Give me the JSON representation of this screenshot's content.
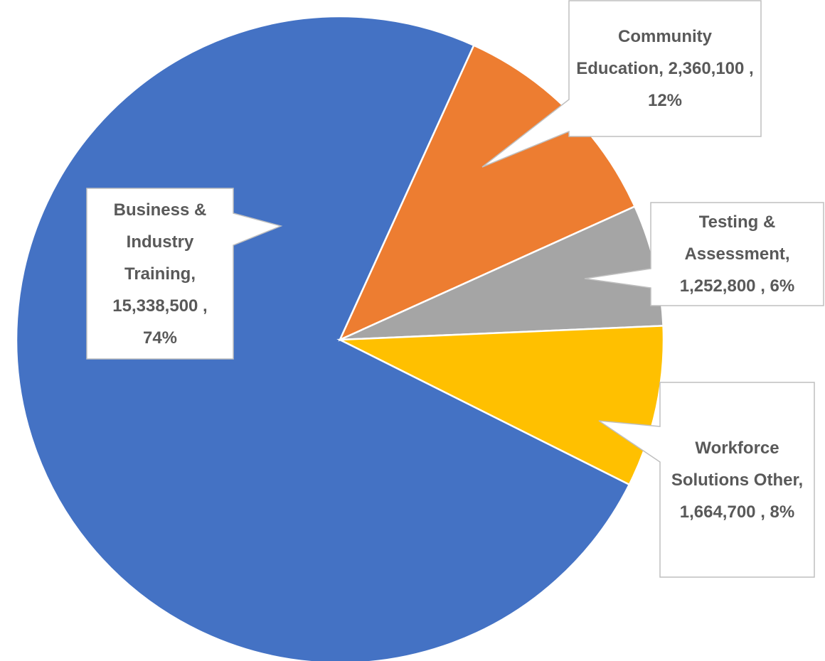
{
  "chart_data": {
    "type": "pie",
    "categories": [
      "Business & Industry Training",
      "Community Education",
      "Testing & Assessment",
      "Workforce Solutions Other"
    ],
    "values": [
      15338500,
      2360100,
      1252800,
      1664700
    ],
    "value_labels": [
      "15,338,500",
      "2,360,100",
      "1,252,800",
      "1,664,700"
    ],
    "percents": [
      74,
      12,
      6,
      8
    ],
    "percent_labels": [
      "74%",
      "12%",
      "6%",
      "8%"
    ],
    "colors": [
      "#4472c4",
      "#ed7d31",
      "#a5a5a5",
      "#ffc000"
    ]
  }
}
